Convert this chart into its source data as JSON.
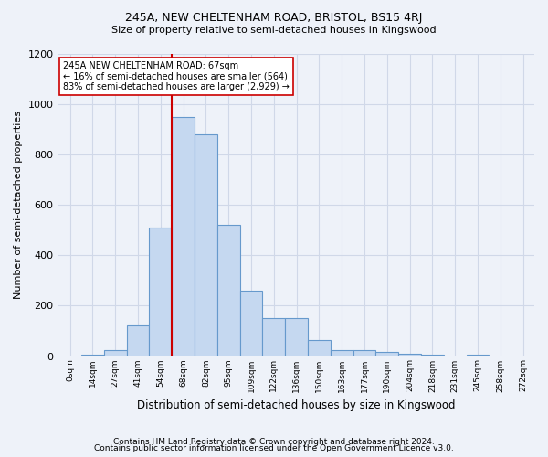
{
  "title1": "245A, NEW CHELTENHAM ROAD, BRISTOL, BS15 4RJ",
  "title2": "Size of property relative to semi-detached houses in Kingswood",
  "xlabel": "Distribution of semi-detached houses by size in Kingswood",
  "ylabel": "Number of semi-detached properties",
  "bin_labels": [
    "0sqm",
    "14sqm",
    "27sqm",
    "41sqm",
    "54sqm",
    "68sqm",
    "82sqm",
    "95sqm",
    "109sqm",
    "122sqm",
    "136sqm",
    "150sqm",
    "163sqm",
    "177sqm",
    "190sqm",
    "204sqm",
    "218sqm",
    "231sqm",
    "245sqm",
    "258sqm",
    "272sqm"
  ],
  "bar_heights": [
    0,
    5,
    25,
    120,
    510,
    950,
    880,
    520,
    260,
    150,
    150,
    65,
    25,
    25,
    15,
    10,
    5,
    0,
    5,
    0,
    0
  ],
  "bar_color": "#c5d8f0",
  "bar_edge_color": "#6699cc",
  "property_bin_index": 5,
  "red_line_color": "#cc0000",
  "annotation_text": "245A NEW CHELTENHAM ROAD: 67sqm\n← 16% of semi-detached houses are smaller (564)\n83% of semi-detached houses are larger (2,929) →",
  "annotation_box_color": "#ffffff",
  "annotation_box_edge": "#cc0000",
  "ylim": [
    0,
    1200
  ],
  "yticks": [
    0,
    200,
    400,
    600,
    800,
    1000,
    1200
  ],
  "footer1": "Contains HM Land Registry data © Crown copyright and database right 2024.",
  "footer2": "Contains public sector information licensed under the Open Government Licence v3.0.",
  "bg_color": "#eef2f9",
  "grid_color": "#d0d8e8"
}
